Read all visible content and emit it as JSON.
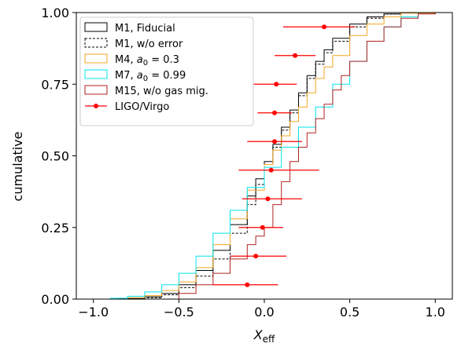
{
  "chart_data": {
    "type": "line",
    "subtype": "cumulative-step",
    "xlabel": "X",
    "xlabel_sub": "eff",
    "ylabel": "cumulative",
    "xlim": [
      -1.1,
      1.1
    ],
    "ylim": [
      0.0,
      1.0
    ],
    "xticks": [
      -1.0,
      -0.5,
      0.0,
      0.5,
      1.0
    ],
    "xtick_labels": [
      "−1.0",
      "−0.5",
      "0.0",
      "0.5",
      "1.0"
    ],
    "yticks": [
      0.0,
      0.25,
      0.5,
      0.75,
      1.0
    ],
    "ytick_labels": [
      "0.00",
      "0.25",
      "0.50",
      "0.75",
      "1.00"
    ],
    "grid": false,
    "legend_position": "top-left",
    "series": [
      {
        "name": "M1, Fiducial",
        "color": "#000000",
        "dash": "solid",
        "points": [
          [
            -1.0,
            0.0
          ],
          [
            -0.85,
            0.002
          ],
          [
            -0.7,
            0.008
          ],
          [
            -0.6,
            0.02
          ],
          [
            -0.5,
            0.05
          ],
          [
            -0.4,
            0.1
          ],
          [
            -0.3,
            0.17
          ],
          [
            -0.2,
            0.26
          ],
          [
            -0.1,
            0.36
          ],
          [
            -0.05,
            0.42
          ],
          [
            0.0,
            0.48
          ],
          [
            0.05,
            0.54
          ],
          [
            0.1,
            0.6
          ],
          [
            0.15,
            0.66
          ],
          [
            0.2,
            0.72
          ],
          [
            0.25,
            0.78
          ],
          [
            0.3,
            0.83
          ],
          [
            0.35,
            0.87
          ],
          [
            0.4,
            0.91
          ],
          [
            0.5,
            0.96
          ],
          [
            0.6,
            0.985
          ],
          [
            0.7,
            0.995
          ],
          [
            0.8,
            1.0
          ],
          [
            1.0,
            1.0
          ]
        ]
      },
      {
        "name": "M1, w/o error",
        "color": "#000000",
        "dash": "dashed",
        "points": [
          [
            -1.0,
            0.0
          ],
          [
            -0.7,
            0.005
          ],
          [
            -0.6,
            0.015
          ],
          [
            -0.5,
            0.04
          ],
          [
            -0.4,
            0.08
          ],
          [
            -0.3,
            0.14
          ],
          [
            -0.2,
            0.23
          ],
          [
            -0.1,
            0.33
          ],
          [
            -0.05,
            0.4
          ],
          [
            0.0,
            0.47
          ],
          [
            0.05,
            0.53
          ],
          [
            0.1,
            0.59
          ],
          [
            0.15,
            0.65
          ],
          [
            0.2,
            0.71
          ],
          [
            0.25,
            0.77
          ],
          [
            0.3,
            0.82
          ],
          [
            0.35,
            0.86
          ],
          [
            0.4,
            0.9
          ],
          [
            0.5,
            0.95
          ],
          [
            0.6,
            0.98
          ],
          [
            0.7,
            0.995
          ],
          [
            0.8,
            1.0
          ],
          [
            1.0,
            1.0
          ]
        ]
      },
      {
        "name": "M4, a₀ = 0.3",
        "label_main": "M4, ",
        "label_math": "a",
        "label_sub": "0",
        "label_tail": " = 0.3",
        "color": "#f5a623",
        "dash": "solid",
        "points": [
          [
            -1.0,
            0.0
          ],
          [
            -0.8,
            0.005
          ],
          [
            -0.7,
            0.012
          ],
          [
            -0.6,
            0.03
          ],
          [
            -0.5,
            0.06
          ],
          [
            -0.4,
            0.11
          ],
          [
            -0.3,
            0.19
          ],
          [
            -0.2,
            0.28
          ],
          [
            -0.1,
            0.38
          ],
          [
            0.0,
            0.47
          ],
          [
            0.05,
            0.52
          ],
          [
            0.1,
            0.57
          ],
          [
            0.15,
            0.62
          ],
          [
            0.2,
            0.67
          ],
          [
            0.25,
            0.72
          ],
          [
            0.3,
            0.77
          ],
          [
            0.35,
            0.81
          ],
          [
            0.4,
            0.85
          ],
          [
            0.5,
            0.92
          ],
          [
            0.6,
            0.96
          ],
          [
            0.7,
            0.985
          ],
          [
            0.8,
            0.998
          ],
          [
            1.0,
            1.0
          ]
        ]
      },
      {
        "name": "M7, a₀ = 0.99",
        "label_main": "M7, ",
        "label_math": "a",
        "label_sub": "0",
        "label_tail": " = 0.99",
        "color": "#00e5ee",
        "dash": "solid",
        "points": [
          [
            -1.0,
            0.0
          ],
          [
            -0.9,
            0.003
          ],
          [
            -0.8,
            0.01
          ],
          [
            -0.7,
            0.025
          ],
          [
            -0.6,
            0.05
          ],
          [
            -0.5,
            0.09
          ],
          [
            -0.4,
            0.15
          ],
          [
            -0.3,
            0.23
          ],
          [
            -0.2,
            0.31
          ],
          [
            -0.1,
            0.39
          ],
          [
            0.0,
            0.46
          ],
          [
            0.1,
            0.53
          ],
          [
            0.2,
            0.6
          ],
          [
            0.3,
            0.67
          ],
          [
            0.4,
            0.75
          ],
          [
            0.5,
            0.83
          ],
          [
            0.6,
            0.9
          ],
          [
            0.7,
            0.95
          ],
          [
            0.8,
            0.985
          ],
          [
            0.9,
            1.0
          ],
          [
            1.0,
            1.0
          ]
        ]
      },
      {
        "name": "M15, w/o gas mig.",
        "color": "#b22222",
        "dash": "solid",
        "points": [
          [
            -1.0,
            0.0
          ],
          [
            -0.6,
            0.0
          ],
          [
            -0.5,
            0.02
          ],
          [
            -0.4,
            0.05
          ],
          [
            -0.3,
            0.09
          ],
          [
            -0.2,
            0.14
          ],
          [
            -0.1,
            0.19
          ],
          [
            -0.05,
            0.22
          ],
          [
            0.0,
            0.25
          ],
          [
            0.05,
            0.33
          ],
          [
            0.1,
            0.41
          ],
          [
            0.15,
            0.48
          ],
          [
            0.2,
            0.53
          ],
          [
            0.25,
            0.58
          ],
          [
            0.3,
            0.63
          ],
          [
            0.35,
            0.68
          ],
          [
            0.4,
            0.73
          ],
          [
            0.45,
            0.78
          ],
          [
            0.5,
            0.83
          ],
          [
            0.6,
            0.9
          ],
          [
            0.7,
            0.95
          ],
          [
            0.8,
            0.98
          ],
          [
            0.9,
            0.995
          ],
          [
            1.0,
            1.0
          ]
        ]
      }
    ],
    "observations": {
      "name": "LIGO/Virgo",
      "color": "#ff0000",
      "points": [
        {
          "x": -0.1,
          "y": 0.05,
          "xerr": [
            0.2,
            0.18
          ]
        },
        {
          "x": -0.05,
          "y": 0.15,
          "xerr": [
            0.15,
            0.18
          ]
        },
        {
          "x": -0.01,
          "y": 0.25,
          "xerr": [
            0.14,
            0.12
          ]
        },
        {
          "x": 0.02,
          "y": 0.35,
          "xerr": [
            0.15,
            0.2
          ]
        },
        {
          "x": 0.04,
          "y": 0.45,
          "xerr": [
            0.19,
            0.28
          ]
        },
        {
          "x": 0.06,
          "y": 0.55,
          "xerr": [
            0.16,
            0.16
          ]
        },
        {
          "x": 0.06,
          "y": 0.65,
          "xerr": [
            0.1,
            0.1
          ]
        },
        {
          "x": 0.07,
          "y": 0.75,
          "xerr": [
            0.28,
            0.12
          ]
        },
        {
          "x": 0.18,
          "y": 0.85,
          "xerr": [
            0.12,
            0.12
          ]
        },
        {
          "x": 0.35,
          "y": 0.95,
          "xerr": [
            0.24,
            0.18
          ]
        }
      ]
    }
  }
}
